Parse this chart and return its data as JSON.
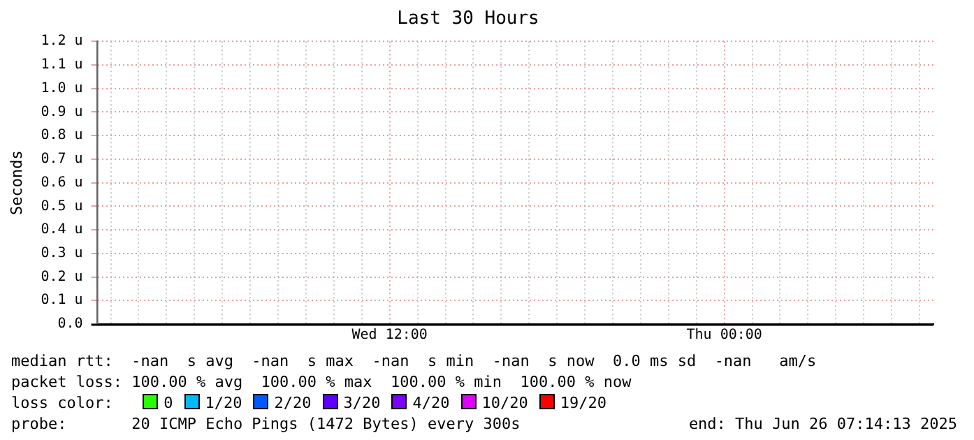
{
  "chart_data": {
    "type": "line",
    "title": "Last 30 Hours",
    "ylabel": "Seconds",
    "legend_title": "loss color:",
    "legend": "bottom",
    "grid": true,
    "categories": [
      null,
      null,
      null,
      null,
      null,
      null,
      null,
      null,
      null,
      null,
      "Wed 12:00",
      null,
      null,
      null,
      null,
      null,
      null,
      null,
      null,
      null,
      null,
      null,
      "Thu 00:00",
      null,
      null,
      null,
      null,
      null,
      null,
      null
    ],
    "ylim": [
      0,
      1.2
    ],
    "yticks": [
      {
        "value": 0,
        "label": "0.0"
      },
      {
        "value": 0.1,
        "label": "0.1 u"
      },
      {
        "value": 0.2,
        "label": "0.2 u"
      },
      {
        "value": 0.3,
        "label": "0.3 u"
      },
      {
        "value": 0.4,
        "label": "0.4 u"
      },
      {
        "value": 0.5,
        "label": "0.5 u"
      },
      {
        "value": 0.6,
        "label": "0.6 u"
      },
      {
        "value": 0.7,
        "label": "0.7 u"
      },
      {
        "value": 0.8,
        "label": "0.8 u"
      },
      {
        "value": 0.9,
        "label": "0.9 u"
      },
      {
        "value": 1.0,
        "label": "1.0 u"
      },
      {
        "value": 1.1,
        "label": "1.1 u"
      },
      {
        "value": 1.2,
        "label": "1.2 u"
      }
    ],
    "series": [
      {
        "name": "0",
        "color": "#26ff00",
        "values": [
          null,
          null,
          null,
          null,
          null,
          null,
          null,
          null,
          null,
          null,
          null,
          null,
          null,
          null,
          null,
          null,
          null,
          null,
          null,
          null,
          null,
          null,
          null,
          null,
          null,
          null,
          null,
          null,
          null,
          null
        ]
      },
      {
        "name": "1/20",
        "color": "#00b8ff",
        "values": [
          null,
          null,
          null,
          null,
          null,
          null,
          null,
          null,
          null,
          null,
          null,
          null,
          null,
          null,
          null,
          null,
          null,
          null,
          null,
          null,
          null,
          null,
          null,
          null,
          null,
          null,
          null,
          null,
          null,
          null
        ]
      },
      {
        "name": "2/20",
        "color": "#0059ff",
        "values": [
          null,
          null,
          null,
          null,
          null,
          null,
          null,
          null,
          null,
          null,
          null,
          null,
          null,
          null,
          null,
          null,
          null,
          null,
          null,
          null,
          null,
          null,
          null,
          null,
          null,
          null,
          null,
          null,
          null,
          null
        ]
      },
      {
        "name": "3/20",
        "color": "#5e00ff",
        "values": [
          null,
          null,
          null,
          null,
          null,
          null,
          null,
          null,
          null,
          null,
          null,
          null,
          null,
          null,
          null,
          null,
          null,
          null,
          null,
          null,
          null,
          null,
          null,
          null,
          null,
          null,
          null,
          null,
          null,
          null
        ]
      },
      {
        "name": "4/20",
        "color": "#7e00ff",
        "values": [
          null,
          null,
          null,
          null,
          null,
          null,
          null,
          null,
          null,
          null,
          null,
          null,
          null,
          null,
          null,
          null,
          null,
          null,
          null,
          null,
          null,
          null,
          null,
          null,
          null,
          null,
          null,
          null,
          null,
          null
        ]
      },
      {
        "name": "10/20",
        "color": "#dd00ff",
        "values": [
          null,
          null,
          null,
          null,
          null,
          null,
          null,
          null,
          null,
          null,
          null,
          null,
          null,
          null,
          null,
          null,
          null,
          null,
          null,
          null,
          null,
          null,
          null,
          null,
          null,
          null,
          null,
          null,
          null,
          null
        ]
      },
      {
        "name": "19/20",
        "color": "#ff0000",
        "values": [
          null,
          null,
          null,
          null,
          null,
          null,
          null,
          null,
          null,
          null,
          null,
          null,
          null,
          null,
          null,
          null,
          null,
          null,
          null,
          null,
          null,
          null,
          null,
          null,
          null,
          null,
          null,
          null,
          null,
          null
        ]
      }
    ],
    "annotations": [
      "median rtt:  -nan  s avg  -nan  s max  -nan  s min  -nan  s now  0.0 ms sd  -nan   am/s",
      "packet loss: 100.00 % avg  100.00 % max  100.00 % min  100.00 % now",
      "probe:       20 ICMP Echo Pings (1472 Bytes) every 300s",
      "end: Thu Jun 26 07:14:13 2025"
    ]
  }
}
